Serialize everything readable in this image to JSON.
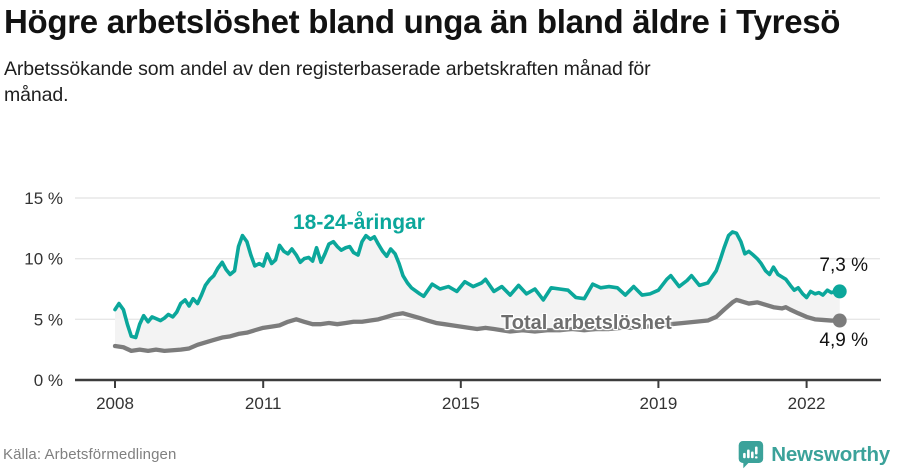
{
  "header": {
    "title": "Högre arbetslöshet bland unga än bland äldre i Tyresö",
    "subtitle": "Arbetssökande som andel av den registerbaserade arbetskraften månad för månad."
  },
  "chart_data": {
    "type": "line",
    "title": "Högre arbetslöshet bland unga än bland äldre i Tyresö",
    "subtitle": "Arbetssökande som andel av den registerbaserade arbetskraften månad för månad.",
    "unit": "%",
    "grid": true,
    "band_fill_color": "#f3f3f3",
    "axis_color": "#3c3c3c",
    "gridline_color": "#e7e7e7",
    "x_axis": {
      "range_years": [
        2008,
        2022.75
      ],
      "ticks": [
        {
          "value": 2008,
          "label": "2008"
        },
        {
          "value": 2011,
          "label": "2011"
        },
        {
          "value": 2015,
          "label": "2015"
        },
        {
          "value": 2019,
          "label": "2019"
        },
        {
          "value": 2022,
          "label": "2022"
        }
      ]
    },
    "y_axis": {
      "range": [
        0,
        16.5
      ],
      "ticks": [
        {
          "value": 0,
          "label": "0 %"
        },
        {
          "value": 5,
          "label": "5 %"
        },
        {
          "value": 10,
          "label": "10 %"
        },
        {
          "value": 15,
          "label": "15 %"
        }
      ]
    },
    "series": [
      {
        "name": "18-24-åringar",
        "label": "18-24-åringar",
        "color": "#0ba79b",
        "line_width": 3.6,
        "end_label": "7,3 %",
        "end_value": 7.3,
        "points": [
          [
            2008.0,
            5.8
          ],
          [
            2008.08,
            6.3
          ],
          [
            2008.17,
            5.8
          ],
          [
            2008.25,
            4.6
          ],
          [
            2008.33,
            3.6
          ],
          [
            2008.42,
            3.5
          ],
          [
            2008.5,
            4.6
          ],
          [
            2008.58,
            5.3
          ],
          [
            2008.67,
            4.8
          ],
          [
            2008.75,
            5.2
          ],
          [
            2008.92,
            4.9
          ],
          [
            2009.0,
            5.1
          ],
          [
            2009.08,
            5.4
          ],
          [
            2009.17,
            5.2
          ],
          [
            2009.25,
            5.6
          ],
          [
            2009.33,
            6.3
          ],
          [
            2009.42,
            6.6
          ],
          [
            2009.5,
            6.1
          ],
          [
            2009.58,
            6.7
          ],
          [
            2009.67,
            6.3
          ],
          [
            2009.75,
            7.0
          ],
          [
            2009.83,
            7.8
          ],
          [
            2009.92,
            8.3
          ],
          [
            2010.0,
            8.6
          ],
          [
            2010.08,
            9.2
          ],
          [
            2010.17,
            9.7
          ],
          [
            2010.25,
            9.1
          ],
          [
            2010.33,
            8.7
          ],
          [
            2010.42,
            9.0
          ],
          [
            2010.5,
            11.0
          ],
          [
            2010.58,
            11.9
          ],
          [
            2010.67,
            11.4
          ],
          [
            2010.75,
            10.3
          ],
          [
            2010.83,
            9.4
          ],
          [
            2010.92,
            9.6
          ],
          [
            2011.0,
            9.4
          ],
          [
            2011.08,
            10.4
          ],
          [
            2011.17,
            9.6
          ],
          [
            2011.25,
            9.9
          ],
          [
            2011.33,
            11.1
          ],
          [
            2011.42,
            10.6
          ],
          [
            2011.5,
            10.4
          ],
          [
            2011.58,
            10.8
          ],
          [
            2011.67,
            10.3
          ],
          [
            2011.75,
            9.7
          ],
          [
            2011.83,
            10.0
          ],
          [
            2011.92,
            10.1
          ],
          [
            2012.0,
            9.8
          ],
          [
            2012.08,
            10.9
          ],
          [
            2012.17,
            9.7
          ],
          [
            2012.25,
            10.4
          ],
          [
            2012.33,
            11.2
          ],
          [
            2012.42,
            11.4
          ],
          [
            2012.5,
            11.0
          ],
          [
            2012.58,
            10.7
          ],
          [
            2012.67,
            10.9
          ],
          [
            2012.75,
            11.0
          ],
          [
            2012.83,
            10.5
          ],
          [
            2012.92,
            10.3
          ],
          [
            2013.0,
            11.4
          ],
          [
            2013.08,
            11.9
          ],
          [
            2013.17,
            11.6
          ],
          [
            2013.25,
            11.8
          ],
          [
            2013.33,
            11.2
          ],
          [
            2013.42,
            10.6
          ],
          [
            2013.5,
            10.2
          ],
          [
            2013.58,
            10.8
          ],
          [
            2013.67,
            10.4
          ],
          [
            2013.75,
            9.6
          ],
          [
            2013.83,
            8.6
          ],
          [
            2013.92,
            8.0
          ],
          [
            2014.0,
            7.6
          ],
          [
            2014.17,
            7.1
          ],
          [
            2014.25,
            6.9
          ],
          [
            2014.42,
            7.9
          ],
          [
            2014.58,
            7.5
          ],
          [
            2014.75,
            7.7
          ],
          [
            2014.92,
            7.3
          ],
          [
            2015.08,
            8.1
          ],
          [
            2015.25,
            7.7
          ],
          [
            2015.42,
            8.0
          ],
          [
            2015.5,
            8.3
          ],
          [
            2015.67,
            7.3
          ],
          [
            2015.83,
            7.7
          ],
          [
            2016.0,
            7.0
          ],
          [
            2016.17,
            7.8
          ],
          [
            2016.33,
            7.1
          ],
          [
            2016.5,
            7.5
          ],
          [
            2016.67,
            6.6
          ],
          [
            2016.83,
            7.6
          ],
          [
            2017.0,
            7.5
          ],
          [
            2017.17,
            7.4
          ],
          [
            2017.33,
            6.8
          ],
          [
            2017.5,
            6.7
          ],
          [
            2017.67,
            7.9
          ],
          [
            2017.83,
            7.6
          ],
          [
            2018.0,
            7.7
          ],
          [
            2018.17,
            7.6
          ],
          [
            2018.33,
            7.0
          ],
          [
            2018.5,
            7.7
          ],
          [
            2018.67,
            7.0
          ],
          [
            2018.83,
            7.1
          ],
          [
            2019.0,
            7.4
          ],
          [
            2019.17,
            8.3
          ],
          [
            2019.25,
            8.6
          ],
          [
            2019.42,
            7.7
          ],
          [
            2019.58,
            8.2
          ],
          [
            2019.67,
            8.6
          ],
          [
            2019.83,
            7.8
          ],
          [
            2020.0,
            8.0
          ],
          [
            2020.17,
            9.0
          ],
          [
            2020.25,
            9.9
          ],
          [
            2020.33,
            10.9
          ],
          [
            2020.42,
            11.9
          ],
          [
            2020.5,
            12.2
          ],
          [
            2020.58,
            12.1
          ],
          [
            2020.67,
            11.4
          ],
          [
            2020.75,
            10.4
          ],
          [
            2020.83,
            10.6
          ],
          [
            2020.92,
            10.3
          ],
          [
            2021.0,
            10.0
          ],
          [
            2021.08,
            9.6
          ],
          [
            2021.17,
            9.0
          ],
          [
            2021.25,
            8.7
          ],
          [
            2021.33,
            9.3
          ],
          [
            2021.42,
            8.7
          ],
          [
            2021.5,
            8.5
          ],
          [
            2021.58,
            8.3
          ],
          [
            2021.67,
            7.8
          ],
          [
            2021.75,
            7.4
          ],
          [
            2021.83,
            7.6
          ],
          [
            2021.92,
            7.1
          ],
          [
            2022.0,
            6.8
          ],
          [
            2022.08,
            7.3
          ],
          [
            2022.17,
            7.1
          ],
          [
            2022.25,
            7.2
          ],
          [
            2022.33,
            7.0
          ],
          [
            2022.42,
            7.4
          ],
          [
            2022.5,
            7.2
          ],
          [
            2022.58,
            7.3
          ],
          [
            2022.67,
            7.3
          ]
        ]
      },
      {
        "name": "Total arbetslöshet",
        "label": "Total arbetslöshet",
        "color": "#7c7c7c",
        "line_width": 4.3,
        "end_label": "4,9 %",
        "end_value": 4.9,
        "points": [
          [
            2008.0,
            2.8
          ],
          [
            2008.17,
            2.7
          ],
          [
            2008.33,
            2.4
          ],
          [
            2008.5,
            2.5
          ],
          [
            2008.67,
            2.4
          ],
          [
            2008.83,
            2.5
          ],
          [
            2009.0,
            2.4
          ],
          [
            2009.17,
            2.45
          ],
          [
            2009.33,
            2.5
          ],
          [
            2009.5,
            2.6
          ],
          [
            2009.67,
            2.9
          ],
          [
            2009.83,
            3.1
          ],
          [
            2010.0,
            3.3
          ],
          [
            2010.17,
            3.5
          ],
          [
            2010.33,
            3.6
          ],
          [
            2010.5,
            3.8
          ],
          [
            2010.67,
            3.9
          ],
          [
            2010.83,
            4.1
          ],
          [
            2011.0,
            4.3
          ],
          [
            2011.17,
            4.4
          ],
          [
            2011.33,
            4.5
          ],
          [
            2011.5,
            4.8
          ],
          [
            2011.67,
            5.0
          ],
          [
            2011.83,
            4.8
          ],
          [
            2012.0,
            4.6
          ],
          [
            2012.17,
            4.6
          ],
          [
            2012.33,
            4.7
          ],
          [
            2012.5,
            4.6
          ],
          [
            2012.67,
            4.7
          ],
          [
            2012.83,
            4.8
          ],
          [
            2013.0,
            4.8
          ],
          [
            2013.17,
            4.9
          ],
          [
            2013.33,
            5.0
          ],
          [
            2013.5,
            5.2
          ],
          [
            2013.67,
            5.4
          ],
          [
            2013.83,
            5.5
          ],
          [
            2014.0,
            5.3
          ],
          [
            2014.17,
            5.1
          ],
          [
            2014.33,
            4.9
          ],
          [
            2014.5,
            4.7
          ],
          [
            2014.67,
            4.6
          ],
          [
            2014.83,
            4.5
          ],
          [
            2015.0,
            4.4
          ],
          [
            2015.17,
            4.3
          ],
          [
            2015.33,
            4.2
          ],
          [
            2015.5,
            4.3
          ],
          [
            2015.67,
            4.2
          ],
          [
            2015.83,
            4.1
          ],
          [
            2016.0,
            4.0
          ],
          [
            2016.25,
            4.1
          ],
          [
            2016.5,
            4.0
          ],
          [
            2016.75,
            4.1
          ],
          [
            2017.0,
            4.1
          ],
          [
            2017.25,
            4.2
          ],
          [
            2017.5,
            4.1
          ],
          [
            2017.75,
            4.2
          ],
          [
            2018.0,
            4.2
          ],
          [
            2018.25,
            4.3
          ],
          [
            2018.5,
            4.3
          ],
          [
            2018.75,
            4.4
          ],
          [
            2019.0,
            4.5
          ],
          [
            2019.25,
            4.6
          ],
          [
            2019.5,
            4.7
          ],
          [
            2019.75,
            4.8
          ],
          [
            2020.0,
            4.9
          ],
          [
            2020.17,
            5.2
          ],
          [
            2020.33,
            5.8
          ],
          [
            2020.5,
            6.4
          ],
          [
            2020.58,
            6.6
          ],
          [
            2020.67,
            6.5
          ],
          [
            2020.83,
            6.3
          ],
          [
            2021.0,
            6.4
          ],
          [
            2021.17,
            6.2
          ],
          [
            2021.33,
            6.0
          ],
          [
            2021.5,
            5.9
          ],
          [
            2021.58,
            6.0
          ],
          [
            2021.67,
            5.8
          ],
          [
            2021.83,
            5.5
          ],
          [
            2022.0,
            5.2
          ],
          [
            2022.17,
            5.0
          ],
          [
            2022.33,
            4.95
          ],
          [
            2022.5,
            4.9
          ],
          [
            2022.67,
            4.9
          ]
        ]
      }
    ]
  },
  "footer": {
    "source": "Källa: Arbetsförmedlingen",
    "brand": "Newsworthy",
    "brand_color": "#3ba29a",
    "brand_icon": "newsworthy-pin-barchart-icon"
  }
}
